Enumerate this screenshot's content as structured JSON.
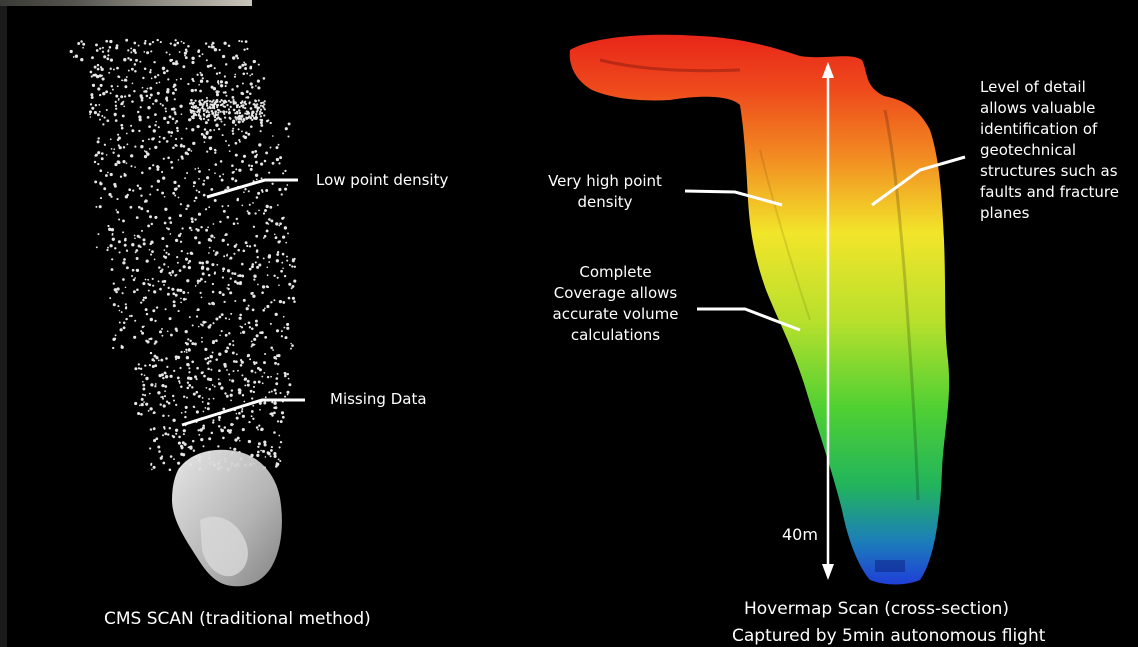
{
  "left_panel": {
    "annotation_low_density": "Low point density",
    "annotation_missing": "Missing Data",
    "caption": "CMS SCAN (traditional method)"
  },
  "right_panel": {
    "annotation_high_density": "Very high point\ndensity",
    "annotation_coverage": "Complete\nCoverage allows\naccurate volume\ncalculations",
    "annotation_detail": "Level of detail\nallows valuable\nidentification of\ngeotechnical\nstructures such as\nfaults and fracture\nplanes",
    "scale_label": "40m",
    "caption_line1": "Hovermap Scan (cross-section)",
    "caption_line2": "Captured by 5min autonomous flight"
  },
  "colors": {
    "background": "#000000",
    "heatmap_top": "#e8261a",
    "heatmap_mid_yellow": "#f2e52a",
    "heatmap_green": "#2fc43a",
    "heatmap_bottom": "#1f3fd8",
    "points": "#e6e6e6"
  }
}
